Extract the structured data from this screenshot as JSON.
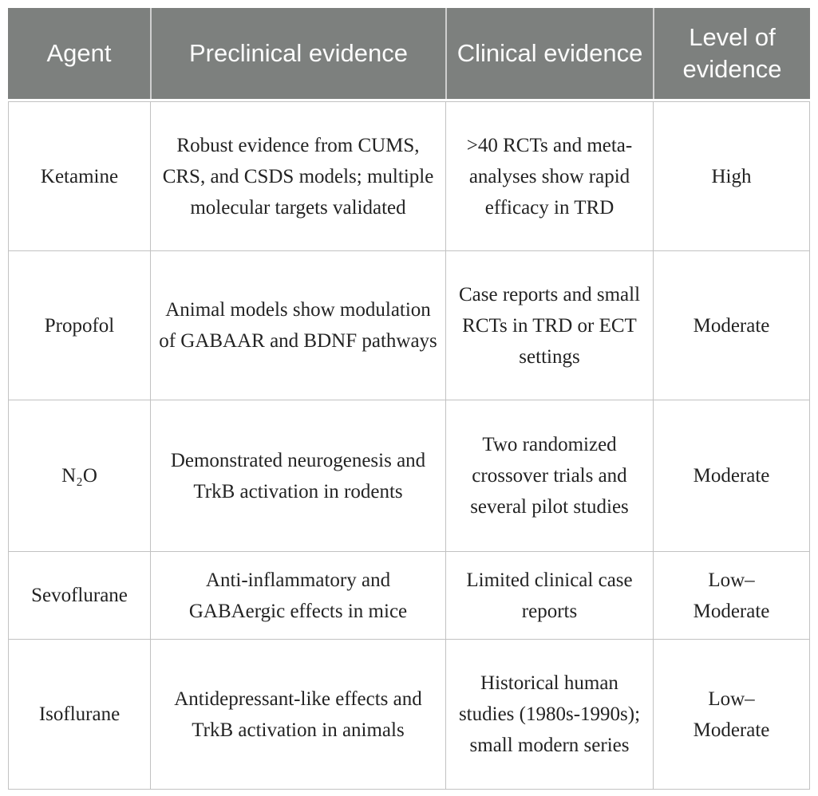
{
  "table": {
    "columns": [
      {
        "label": "Agent"
      },
      {
        "label": "Preclinical evidence"
      },
      {
        "label": "Clinical evidence"
      },
      {
        "label": "Level of evidence"
      }
    ],
    "rows": [
      {
        "agent": "Ketamine",
        "preclinical": "Robust evidence from CUMS, CRS, and CSDS models; multiple molecular targets validated",
        "clinical": ">40 RCTs and meta-analyses show rapid efficacy in TRD",
        "level": "High"
      },
      {
        "agent": "Propofol",
        "preclinical": "Animal models show modulation of GABAAR and BDNF pathways",
        "clinical": "Case reports and small RCTs in TRD or ECT settings",
        "level": "Moderate"
      },
      {
        "agent": "N₂O",
        "preclinical": "Demonstrated neurogenesis and TrkB activation in rodents",
        "clinical": "Two randomized crossover trials and several pilot studies",
        "level": "Moderate"
      },
      {
        "agent": "Sevoflurane",
        "preclinical": "Anti-inflammatory and GABAergic effects in mice",
        "clinical": "Limited clinical case reports",
        "level": "Low–\nModerate"
      },
      {
        "agent": "Isoflurane",
        "preclinical": "Antidepressant-like effects and TrkB activation in animals",
        "clinical": "Historical human studies (1980s-1990s); small modern series",
        "level": "Low–\nModerate"
      }
    ],
    "colors": {
      "header_bg": "#7d807e",
      "header_text": "#fcfcfc",
      "body_text": "#232323",
      "border": "#c2c2c2"
    }
  }
}
